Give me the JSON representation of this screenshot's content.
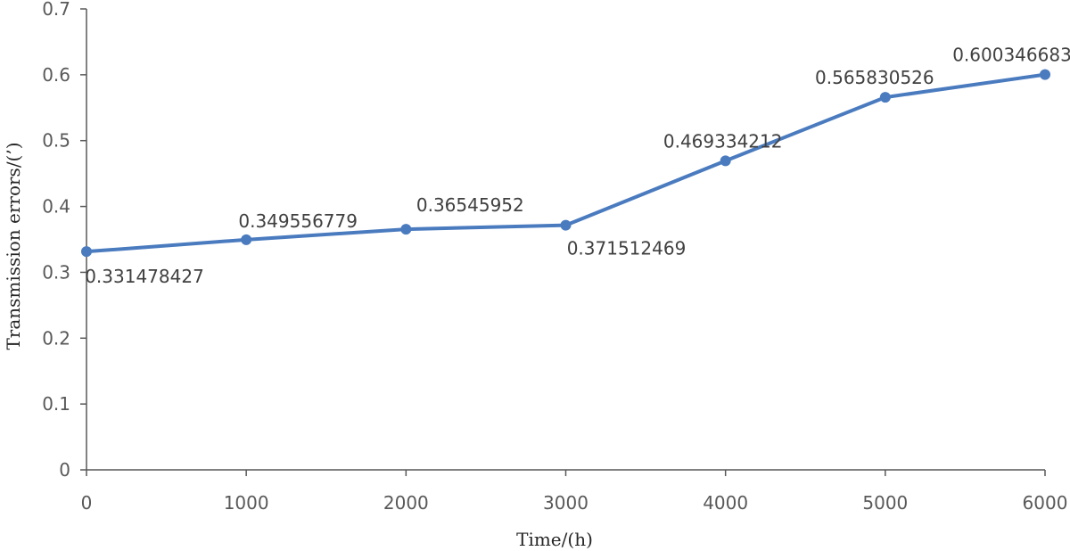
{
  "chart_data": {
    "type": "line",
    "title": "",
    "xlabel": "Time/(h)",
    "ylabel": "Transmission errors/(’)",
    "xlim": [
      0,
      6000
    ],
    "ylim": [
      0,
      0.7
    ],
    "x_ticks": [
      "0",
      "1000",
      "2000",
      "3000",
      "4000",
      "5000",
      "6000"
    ],
    "y_ticks": [
      "0",
      "0.1",
      "0.2",
      "0.3",
      "0.4",
      "0.5",
      "0.6",
      "0.7"
    ],
    "grid": false,
    "legend": "none",
    "series": [
      {
        "x": [
          0,
          1000,
          2000,
          3000,
          4000,
          5000,
          6000
        ],
        "y": [
          0.331478427,
          0.349556779,
          0.36545952,
          0.371512469,
          0.469334212,
          0.565830526,
          0.600346683
        ],
        "labels": [
          "0.331478427",
          "0.349556779",
          "0.36545952",
          "0.371512469",
          "0.469334212",
          "0.565830526",
          "0.600346683"
        ],
        "color": "#4a7bbf"
      }
    ],
    "axis_color": "#595959"
  }
}
